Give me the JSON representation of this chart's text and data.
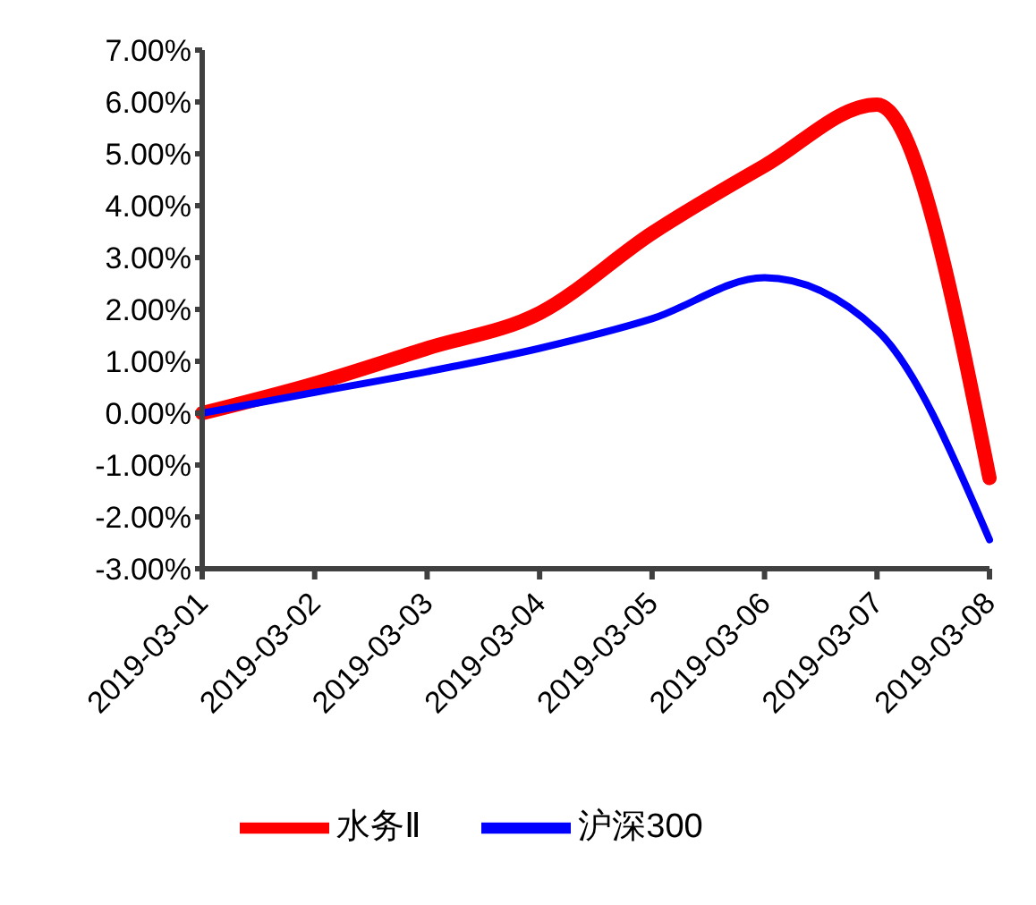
{
  "chart_data": {
    "type": "line",
    "categories": [
      "2019-03-01",
      "2019-03-02",
      "2019-03-03",
      "2019-03-04",
      "2019-03-05",
      "2019-03-06",
      "2019-03-07",
      "2019-03-08"
    ],
    "series": [
      {
        "name": "水务Ⅱ",
        "color": "#ff0000",
        "values": [
          0,
          0.57,
          1.25,
          1.93,
          3.47,
          4.77,
          5.95,
          -1.25
        ]
      },
      {
        "name": "沪深300",
        "color": "#0000ff",
        "values": [
          0,
          0.4,
          0.8,
          1.25,
          1.82,
          2.61,
          1.6,
          -2.44
        ]
      }
    ],
    "ylim": [
      -3,
      7
    ],
    "yticks": [
      {
        "value": -3,
        "label": "-3.00%"
      },
      {
        "value": -2,
        "label": "-2.00%"
      },
      {
        "value": -1,
        "label": "-1.00%"
      },
      {
        "value": 0,
        "label": "0.00%"
      },
      {
        "value": 1,
        "label": "1.00%"
      },
      {
        "value": 2,
        "label": "2.00%"
      },
      {
        "value": 3,
        "label": "3.00%"
      },
      {
        "value": 4,
        "label": "4.00%"
      },
      {
        "value": 5,
        "label": "5.00%"
      },
      {
        "value": 6,
        "label": "6.00%"
      },
      {
        "value": 7,
        "label": "7.00%"
      }
    ],
    "grid": false,
    "legend": "bottom",
    "marker": "none",
    "line_style": "solid"
  }
}
